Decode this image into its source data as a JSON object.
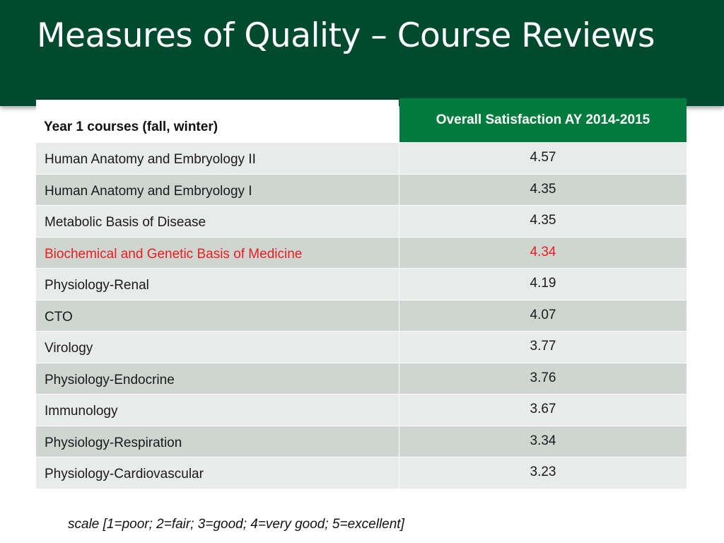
{
  "slide": {
    "title": "Measures of Quality – Course Reviews",
    "footnote": "scale [1=poor; 2=fair; 3=good; 4=very good; 5=excellent]",
    "colors": {
      "title_bar": "#004b2f",
      "header_accent": "#007a3d",
      "highlight_text": "#ee1c1c",
      "row_light": "#e9ebea",
      "row_dark": "#cfd6d2"
    }
  },
  "table": {
    "headers": {
      "course": "Year 1 courses (fall, winter)",
      "score": "Overall Satisfaction AY 2014-2015"
    },
    "rows": [
      {
        "course": "Human Anatomy and Embryology II",
        "score": "4.57",
        "highlight": false
      },
      {
        "course": "Human Anatomy and Embryology I",
        "score": "4.35",
        "highlight": false
      },
      {
        "course": "Metabolic Basis of Disease",
        "score": "4.35",
        "highlight": false
      },
      {
        "course": "Biochemical and Genetic Basis of Medicine",
        "score": "4.34",
        "highlight": true
      },
      {
        "course": "Physiology-Renal",
        "score": "4.19",
        "highlight": false
      },
      {
        "course": "CTO",
        "score": "4.07",
        "highlight": false
      },
      {
        "course": "Virology",
        "score": "3.77",
        "highlight": false
      },
      {
        "course": "Physiology-Endocrine",
        "score": "3.76",
        "highlight": false
      },
      {
        "course": "Immunology",
        "score": "3.67",
        "highlight": false
      },
      {
        "course": "Physiology-Respiration",
        "score": "3.34",
        "highlight": false
      },
      {
        "course": "Physiology-Cardiovascular",
        "score": "3.23",
        "highlight": false
      }
    ]
  }
}
